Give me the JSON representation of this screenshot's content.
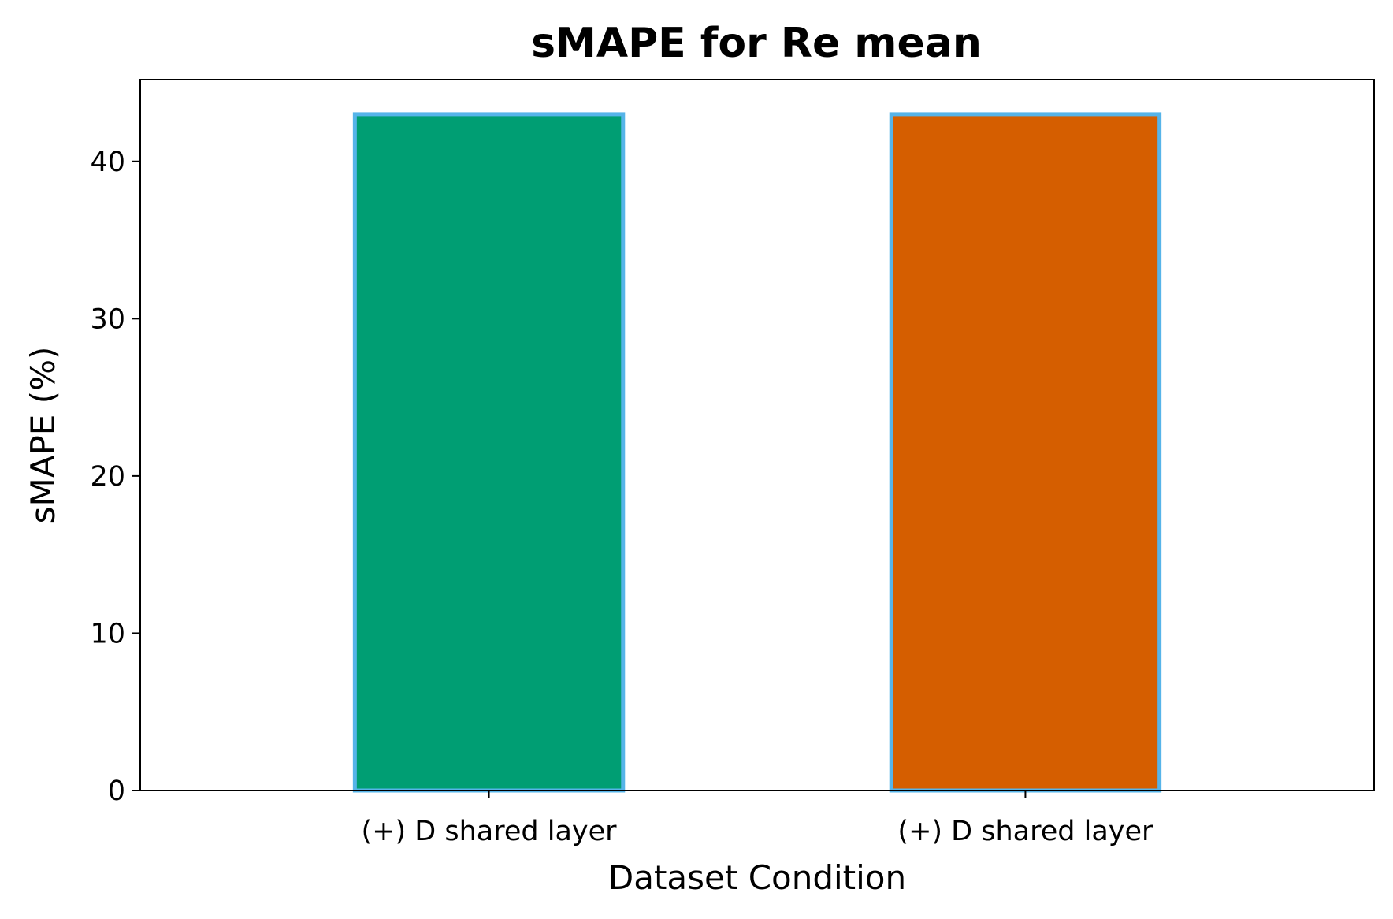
{
  "chart_data": {
    "type": "bar",
    "title": "sMAPE for Re mean",
    "xlabel": "Dataset Condition",
    "ylabel": "sMAPE (%)",
    "categories": [
      "(+) D shared layer",
      "(+) D shared layer"
    ],
    "values": [
      43.0,
      43.0
    ],
    "bar_colors": [
      "#009E73",
      "#D55E00"
    ],
    "bar_edge_color": "#56B4E9",
    "ylim": [
      0,
      45.2
    ],
    "yticks": [
      0,
      10,
      20,
      30,
      40
    ],
    "grid": false,
    "legend": "none"
  }
}
